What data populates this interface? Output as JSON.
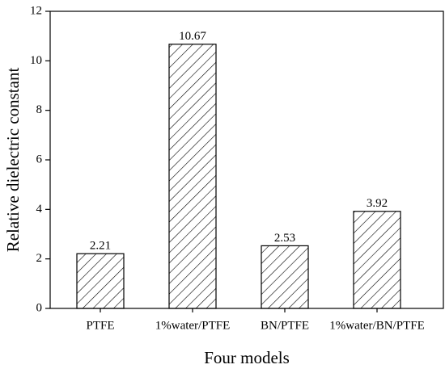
{
  "chart_data": {
    "type": "bar",
    "x_label": "Four models",
    "y_label": "Relative dielectric constant",
    "categories": [
      "PTFE",
      "1%water/PTFE",
      "BN/PTFE",
      "1%water/BN/PTFE"
    ],
    "values": [
      2.21,
      10.67,
      2.53,
      3.92
    ],
    "color": "#000000",
    "ylim": [
      0,
      12
    ],
    "yticks": [
      0,
      2,
      4,
      6,
      8,
      10,
      12
    ]
  }
}
